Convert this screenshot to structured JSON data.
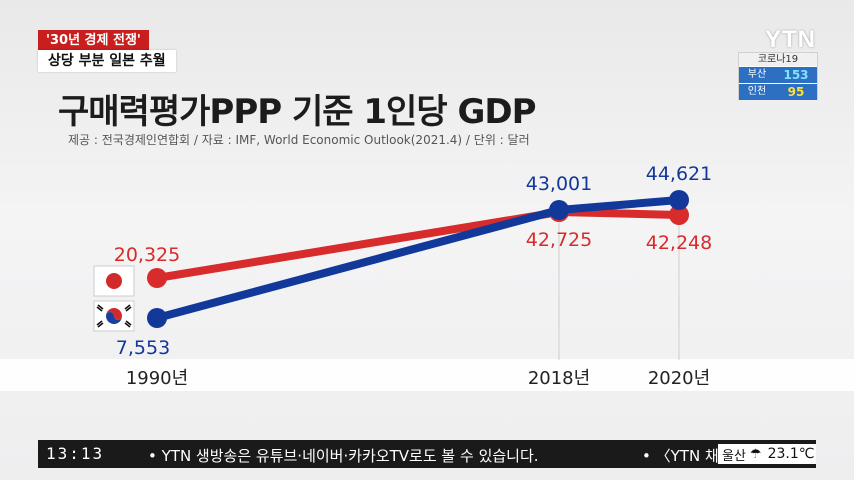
{
  "badges": {
    "series": "'30년 경제 전쟁'",
    "headline": "상당 부분 일본 추월"
  },
  "broadcaster": {
    "logo": "YTN"
  },
  "covid": {
    "title": "코로나19",
    "rows": [
      {
        "city": "부산",
        "count": "153"
      },
      {
        "city": "인천",
        "count": "95"
      }
    ]
  },
  "ticker": {
    "time": "13:13",
    "text": "• YTN 생방송은 유튜브·네이버·카카오TV로도 볼 수 있습니다.",
    "text_next": "• 〈YTN 채",
    "weather": {
      "city": "울산",
      "icon": "umbrella-icon",
      "temp": "23.1℃"
    }
  },
  "chart_data": {
    "type": "line",
    "title": "구매력평가PPP 기준 1인당 GDP",
    "source": "제공 : 전국경제인연합회 / 자료 : IMF, World Economic Outlook(2021.4) / 단위 : 달러",
    "unit": "달러",
    "x": [
      "1990년",
      "2018년",
      "2020년"
    ],
    "series": [
      {
        "name": "일본",
        "flag": "japan-flag",
        "color": "#d82b2b",
        "values": [
          20325,
          42725,
          42248
        ],
        "labels": [
          "20,325",
          "42,725",
          "42,248"
        ]
      },
      {
        "name": "한국",
        "flag": "korea-flag",
        "color": "#12389a",
        "values": [
          7553,
          43001,
          44621
        ],
        "labels": [
          "7,553",
          "43,001",
          "44,621"
        ]
      }
    ]
  }
}
